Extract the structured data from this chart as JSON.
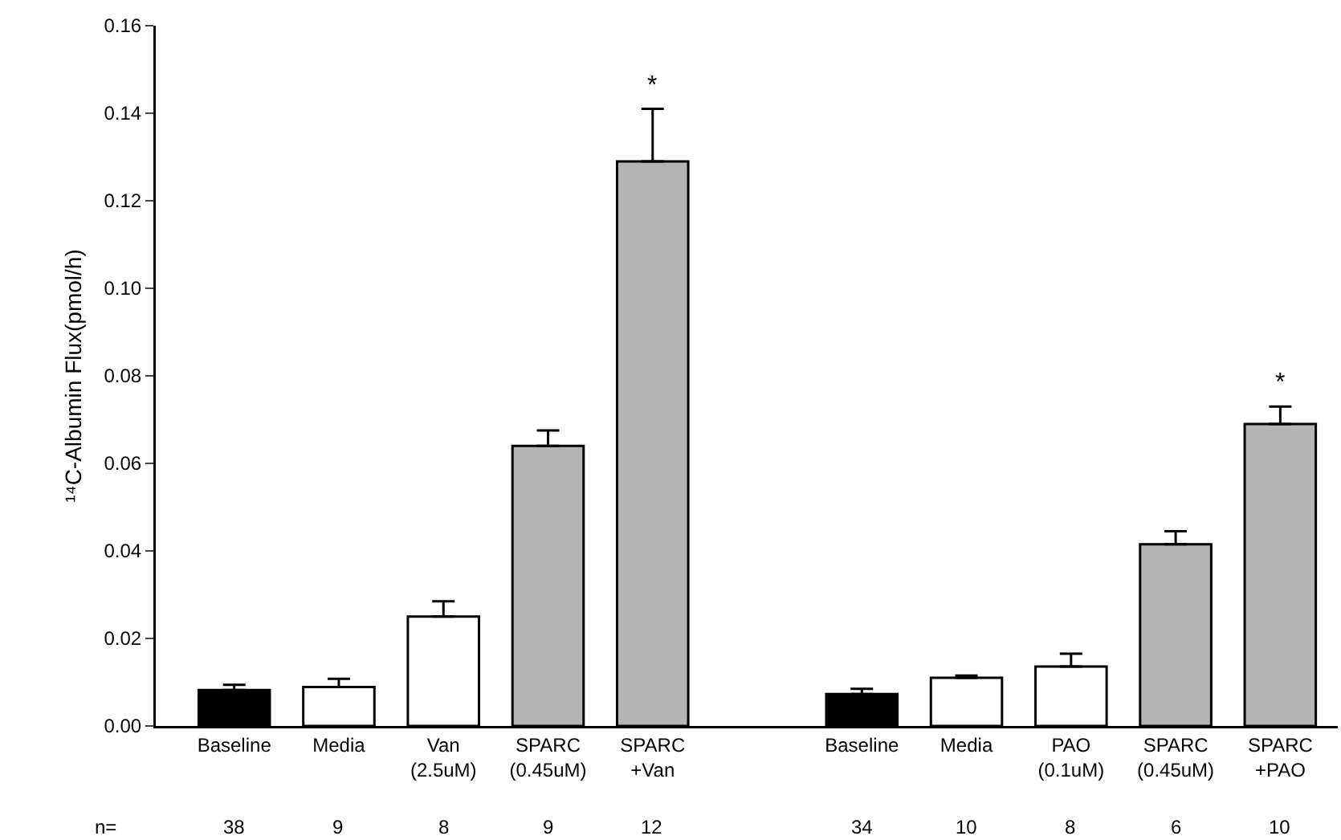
{
  "chart_data": {
    "type": "bar",
    "ylabel": "¹⁴C-Albumin Flux(pmol/h)",
    "categories": [
      "Baseline",
      "Media",
      "Van\n(2.5uM)",
      "SPARC\n(0.45uM)",
      "SPARC\n+Van",
      null,
      "Baseline",
      "Media",
      "PAO\n(0.1uM)",
      "SPARC\n(0.45uM)",
      "SPARC\n+PAO"
    ],
    "values": [
      0.0082,
      0.0089,
      0.025,
      0.064,
      0.129,
      null,
      0.0073,
      0.011,
      0.0136,
      0.0415,
      0.069
    ],
    "errors": [
      [
        0.0082,
        0.0094
      ],
      [
        0.0089,
        0.0108
      ],
      [
        0.025,
        0.0285
      ],
      [
        0.064,
        0.0675
      ],
      [
        0.129,
        0.141
      ],
      null,
      [
        0.0073,
        0.0085
      ],
      [
        0.011,
        0.0115
      ],
      [
        0.0136,
        0.0165
      ],
      [
        0.0415,
        0.0445
      ],
      [
        0.069,
        0.073
      ]
    ],
    "colors": [
      "#000000",
      "#ffffff",
      "#ffffff",
      "#b4b4b4",
      "#b4b4b4",
      "#ffffff",
      "#000000",
      "#ffffff",
      "#ffffff",
      "#b4b4b4",
      "#b4b4b4"
    ],
    "ylim": [
      0,
      0.16
    ],
    "yticks": [
      {
        "value": 0,
        "label": "0.00"
      },
      {
        "value": 0.02,
        "label": "0.02"
      },
      {
        "value": 0.04,
        "label": "0.04"
      },
      {
        "value": 0.06,
        "label": "0.06"
      },
      {
        "value": 0.08,
        "label": "0.08"
      },
      {
        "value": 0.1,
        "label": "0.10"
      },
      {
        "value": 0.12,
        "label": "0.12"
      },
      {
        "value": 0.14,
        "label": "0.14"
      },
      {
        "value": 0.16,
        "label": "0.16"
      }
    ],
    "annotations": [
      "n=",
      "38",
      "9",
      "8",
      "9",
      "12",
      "34",
      "10",
      "8",
      "6",
      "10",
      "*",
      "*"
    ]
  }
}
